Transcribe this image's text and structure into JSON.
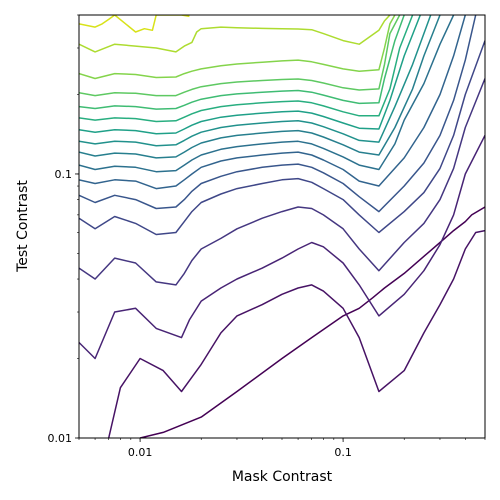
{
  "chart_data": {
    "type": "contour",
    "xlabel": "Mask Contrast",
    "ylabel": "Test Contrast",
    "x_scale": "log",
    "y_scale": "log",
    "xlim": [
      0.005,
      0.5
    ],
    "ylim": [
      0.01,
      0.4
    ],
    "x_ticks": [
      {
        "value": 0.01,
        "label": "0.01"
      },
      {
        "value": 0.1,
        "label": "0.1"
      }
    ],
    "y_ticks": [
      {
        "value": 0.01,
        "label": "0.01"
      },
      {
        "value": 0.1,
        "label": "0.1"
      }
    ],
    "grid": false,
    "colormap": "viridis",
    "level_count": 18,
    "contours": [
      {
        "level_index": 0,
        "color": "#440154",
        "x": [
          0.01,
          0.013,
          0.02,
          0.03,
          0.05,
          0.07,
          0.1,
          0.12,
          0.14,
          0.16,
          0.2,
          0.26,
          0.3,
          0.35,
          0.4,
          0.43,
          0.5
        ],
        "y": [
          0.01,
          0.0105,
          0.012,
          0.015,
          0.02,
          0.024,
          0.029,
          0.031,
          0.034,
          0.037,
          0.042,
          0.05,
          0.055,
          0.061,
          0.066,
          0.07,
          0.075
        ]
      },
      {
        "level_index": 1,
        "color": "#471365",
        "x": [
          0.007,
          0.008,
          0.01,
          0.013,
          0.016,
          0.02,
          0.025,
          0.03,
          0.04,
          0.05,
          0.06,
          0.07,
          0.08,
          0.1,
          0.12,
          0.15,
          0.2,
          0.25,
          0.3,
          0.35,
          0.4,
          0.45,
          0.5
        ],
        "y": [
          0.01,
          0.0155,
          0.02,
          0.018,
          0.015,
          0.019,
          0.025,
          0.029,
          0.032,
          0.035,
          0.037,
          0.038,
          0.036,
          0.031,
          0.024,
          0.015,
          0.018,
          0.025,
          0.032,
          0.04,
          0.052,
          0.06,
          0.061
        ]
      },
      {
        "level_index": 2,
        "color": "#482475",
        "x": [
          0.005,
          0.006,
          0.0075,
          0.0095,
          0.012,
          0.016,
          0.0175,
          0.02,
          0.025,
          0.03,
          0.04,
          0.05,
          0.06,
          0.07,
          0.08,
          0.1,
          0.12,
          0.15,
          0.2,
          0.25,
          0.3,
          0.35,
          0.4,
          0.5
        ],
        "y": [
          0.023,
          0.02,
          0.03,
          0.031,
          0.026,
          0.024,
          0.028,
          0.033,
          0.037,
          0.04,
          0.044,
          0.048,
          0.052,
          0.055,
          0.053,
          0.046,
          0.038,
          0.029,
          0.035,
          0.043,
          0.054,
          0.07,
          0.1,
          0.14
        ]
      },
      {
        "level_index": 3,
        "color": "#453781",
        "x": [
          0.005,
          0.006,
          0.0075,
          0.0095,
          0.012,
          0.015,
          0.0165,
          0.018,
          0.02,
          0.025,
          0.03,
          0.04,
          0.05,
          0.06,
          0.07,
          0.08,
          0.1,
          0.12,
          0.15,
          0.2,
          0.25,
          0.3,
          0.35,
          0.4,
          0.5
        ],
        "y": [
          0.044,
          0.04,
          0.048,
          0.046,
          0.039,
          0.038,
          0.042,
          0.047,
          0.052,
          0.057,
          0.062,
          0.068,
          0.072,
          0.075,
          0.074,
          0.07,
          0.062,
          0.052,
          0.043,
          0.055,
          0.065,
          0.08,
          0.105,
          0.15,
          0.23
        ]
      },
      {
        "level_index": 4,
        "color": "#3f4788",
        "x": [
          0.005,
          0.006,
          0.0075,
          0.0095,
          0.012,
          0.015,
          0.0165,
          0.018,
          0.02,
          0.025,
          0.03,
          0.04,
          0.05,
          0.06,
          0.07,
          0.08,
          0.1,
          0.12,
          0.15,
          0.2,
          0.25,
          0.3,
          0.35,
          0.4,
          0.5
        ],
        "y": [
          0.068,
          0.062,
          0.069,
          0.065,
          0.059,
          0.06,
          0.066,
          0.072,
          0.078,
          0.084,
          0.088,
          0.092,
          0.095,
          0.096,
          0.093,
          0.088,
          0.08,
          0.07,
          0.06,
          0.072,
          0.085,
          0.105,
          0.14,
          0.2,
          0.32
        ]
      },
      {
        "level_index": 5,
        "color": "#39568c",
        "x": [
          0.005,
          0.006,
          0.0075,
          0.0095,
          0.012,
          0.015,
          0.0165,
          0.018,
          0.02,
          0.025,
          0.03,
          0.04,
          0.05,
          0.06,
          0.07,
          0.08,
          0.1,
          0.12,
          0.15,
          0.2,
          0.25,
          0.3,
          0.35,
          0.4,
          0.45
        ],
        "y": [
          0.083,
          0.078,
          0.083,
          0.08,
          0.074,
          0.075,
          0.08,
          0.086,
          0.092,
          0.098,
          0.102,
          0.106,
          0.108,
          0.109,
          0.106,
          0.101,
          0.092,
          0.082,
          0.072,
          0.09,
          0.11,
          0.14,
          0.19,
          0.27,
          0.4
        ]
      },
      {
        "level_index": 6,
        "color": "#32648e",
        "x": [
          0.005,
          0.006,
          0.0075,
          0.0095,
          0.012,
          0.015,
          0.0165,
          0.018,
          0.02,
          0.025,
          0.03,
          0.04,
          0.05,
          0.06,
          0.07,
          0.08,
          0.1,
          0.12,
          0.15,
          0.2,
          0.25,
          0.3,
          0.35,
          0.4
        ],
        "y": [
          0.095,
          0.092,
          0.095,
          0.094,
          0.088,
          0.09,
          0.095,
          0.1,
          0.106,
          0.112,
          0.115,
          0.118,
          0.12,
          0.121,
          0.118,
          0.113,
          0.104,
          0.094,
          0.09,
          0.115,
          0.15,
          0.2,
          0.28,
          0.4
        ]
      },
      {
        "level_index": 7,
        "color": "#2c718e",
        "x": [
          0.005,
          0.006,
          0.0075,
          0.0095,
          0.012,
          0.015,
          0.0165,
          0.018,
          0.02,
          0.025,
          0.03,
          0.04,
          0.05,
          0.06,
          0.07,
          0.08,
          0.1,
          0.12,
          0.15,
          0.18,
          0.2,
          0.25,
          0.3,
          0.35
        ],
        "y": [
          0.108,
          0.104,
          0.107,
          0.106,
          0.102,
          0.103,
          0.108,
          0.113,
          0.118,
          0.124,
          0.127,
          0.13,
          0.132,
          0.133,
          0.13,
          0.125,
          0.116,
          0.108,
          0.104,
          0.13,
          0.16,
          0.22,
          0.31,
          0.4
        ]
      },
      {
        "level_index": 8,
        "color": "#277f8e",
        "x": [
          0.005,
          0.006,
          0.0075,
          0.0095,
          0.012,
          0.015,
          0.0165,
          0.018,
          0.02,
          0.025,
          0.03,
          0.04,
          0.05,
          0.06,
          0.07,
          0.08,
          0.1,
          0.12,
          0.15,
          0.18,
          0.22,
          0.25,
          0.3
        ],
        "y": [
          0.121,
          0.117,
          0.12,
          0.119,
          0.115,
          0.116,
          0.121,
          0.126,
          0.131,
          0.137,
          0.14,
          0.143,
          0.145,
          0.146,
          0.143,
          0.138,
          0.129,
          0.121,
          0.118,
          0.15,
          0.21,
          0.28,
          0.4
        ]
      },
      {
        "level_index": 9,
        "color": "#21918c",
        "x": [
          0.005,
          0.006,
          0.0075,
          0.0095,
          0.012,
          0.015,
          0.0165,
          0.018,
          0.02,
          0.025,
          0.03,
          0.04,
          0.05,
          0.06,
          0.07,
          0.08,
          0.1,
          0.12,
          0.15,
          0.18,
          0.22,
          0.27
        ],
        "y": [
          0.133,
          0.13,
          0.133,
          0.132,
          0.128,
          0.129,
          0.134,
          0.139,
          0.144,
          0.15,
          0.153,
          0.156,
          0.158,
          0.159,
          0.156,
          0.151,
          0.142,
          0.134,
          0.132,
          0.18,
          0.26,
          0.4
        ]
      },
      {
        "level_index": 10,
        "color": "#1fa088",
        "x": [
          0.005,
          0.006,
          0.0075,
          0.0095,
          0.012,
          0.015,
          0.0165,
          0.018,
          0.02,
          0.025,
          0.03,
          0.04,
          0.05,
          0.06,
          0.07,
          0.08,
          0.1,
          0.12,
          0.15,
          0.17,
          0.2,
          0.24
        ],
        "y": [
          0.147,
          0.144,
          0.147,
          0.146,
          0.142,
          0.143,
          0.148,
          0.153,
          0.158,
          0.164,
          0.167,
          0.17,
          0.172,
          0.173,
          0.17,
          0.165,
          0.156,
          0.149,
          0.148,
          0.19,
          0.28,
          0.4
        ]
      },
      {
        "level_index": 11,
        "color": "#28ae80",
        "x": [
          0.005,
          0.006,
          0.0075,
          0.0095,
          0.012,
          0.015,
          0.0165,
          0.018,
          0.02,
          0.025,
          0.03,
          0.04,
          0.05,
          0.06,
          0.07,
          0.08,
          0.1,
          0.12,
          0.15,
          0.17,
          0.19,
          0.22
        ],
        "y": [
          0.163,
          0.16,
          0.163,
          0.162,
          0.158,
          0.159,
          0.164,
          0.169,
          0.174,
          0.18,
          0.183,
          0.186,
          0.188,
          0.189,
          0.186,
          0.181,
          0.172,
          0.166,
          0.166,
          0.21,
          0.3,
          0.4
        ]
      },
      {
        "level_index": 12,
        "color": "#3fbc73",
        "x": [
          0.005,
          0.006,
          0.0075,
          0.0095,
          0.012,
          0.015,
          0.0165,
          0.018,
          0.02,
          0.025,
          0.03,
          0.04,
          0.05,
          0.06,
          0.07,
          0.08,
          0.1,
          0.12,
          0.15,
          0.16,
          0.18,
          0.2
        ],
        "y": [
          0.18,
          0.177,
          0.181,
          0.18,
          0.176,
          0.177,
          0.182,
          0.187,
          0.192,
          0.198,
          0.201,
          0.204,
          0.206,
          0.207,
          0.204,
          0.199,
          0.19,
          0.185,
          0.186,
          0.23,
          0.32,
          0.4
        ]
      },
      {
        "level_index": 13,
        "color": "#5ec962",
        "x": [
          0.005,
          0.006,
          0.0075,
          0.0095,
          0.012,
          0.015,
          0.0165,
          0.018,
          0.02,
          0.025,
          0.03,
          0.04,
          0.05,
          0.06,
          0.07,
          0.08,
          0.1,
          0.12,
          0.15,
          0.16,
          0.17,
          0.19
        ],
        "y": [
          0.203,
          0.198,
          0.203,
          0.202,
          0.198,
          0.198,
          0.204,
          0.209,
          0.214,
          0.22,
          0.223,
          0.226,
          0.228,
          0.229,
          0.226,
          0.221,
          0.212,
          0.208,
          0.21,
          0.26,
          0.34,
          0.4
        ]
      },
      {
        "level_index": 14,
        "color": "#84d44b",
        "x": [
          0.005,
          0.006,
          0.0075,
          0.0095,
          0.012,
          0.015,
          0.0165,
          0.018,
          0.02,
          0.025,
          0.03,
          0.04,
          0.05,
          0.06,
          0.07,
          0.08,
          0.1,
          0.12,
          0.15,
          0.16,
          0.17,
          0.18
        ],
        "y": [
          0.24,
          0.23,
          0.24,
          0.238,
          0.232,
          0.233,
          0.24,
          0.245,
          0.25,
          0.257,
          0.261,
          0.265,
          0.268,
          0.27,
          0.266,
          0.26,
          0.25,
          0.245,
          0.248,
          0.3,
          0.37,
          0.4
        ]
      },
      {
        "level_index": 15,
        "color": "#addc30",
        "x": [
          0.005,
          0.006,
          0.0075,
          0.0095,
          0.012,
          0.015,
          0.0165,
          0.018,
          0.019,
          0.02,
          0.025,
          0.03,
          0.04,
          0.05,
          0.06,
          0.07,
          0.08,
          0.1,
          0.12,
          0.15,
          0.16,
          0.17
        ],
        "y": [
          0.31,
          0.29,
          0.31,
          0.305,
          0.3,
          0.29,
          0.305,
          0.315,
          0.345,
          0.355,
          0.36,
          0.358,
          0.356,
          0.355,
          0.354,
          0.352,
          0.34,
          0.32,
          0.31,
          0.35,
          0.38,
          0.4
        ]
      },
      {
        "level_index": 16,
        "color": "#d8e219",
        "x": [
          0.005,
          0.006,
          0.0065,
          0.007,
          0.0075,
          0.0095,
          0.0105,
          0.0115,
          0.012,
          0.016,
          0.0175
        ],
        "y": [
          0.37,
          0.36,
          0.37,
          0.385,
          0.4,
          0.345,
          0.355,
          0.35,
          0.4,
          0.4,
          0.395
        ]
      }
    ]
  }
}
